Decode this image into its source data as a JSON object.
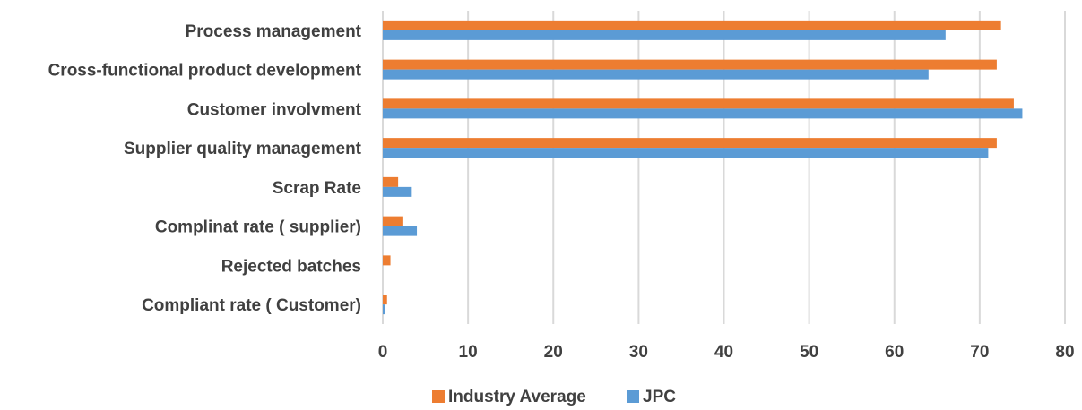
{
  "chart_data": {
    "type": "bar",
    "orientation": "horizontal",
    "categories": [
      "Process management",
      "Cross-functional product development",
      "Customer involvment",
      "Supplier quality management",
      "Scrap Rate",
      "Complinat rate ( supplier)",
      "Rejected batches",
      "Compliant rate ( Customer)"
    ],
    "series": [
      {
        "name": "Industry Average",
        "color": "#ed7d31",
        "values": [
          72.5,
          72,
          74,
          72,
          1.8,
          2.3,
          0.9,
          0.5
        ]
      },
      {
        "name": "JPC",
        "color": "#5b9bd5",
        "values": [
          66,
          64,
          75,
          71,
          3.4,
          4,
          0,
          0.3
        ]
      }
    ],
    "xlim": [
      0,
      80
    ],
    "xticks": [
      "0",
      "10",
      "20",
      "30",
      "40",
      "50",
      "60",
      "70",
      "80"
    ],
    "grid": "vertical",
    "legend_position": "bottom",
    "title": "",
    "xlabel": "",
    "ylabel": ""
  }
}
